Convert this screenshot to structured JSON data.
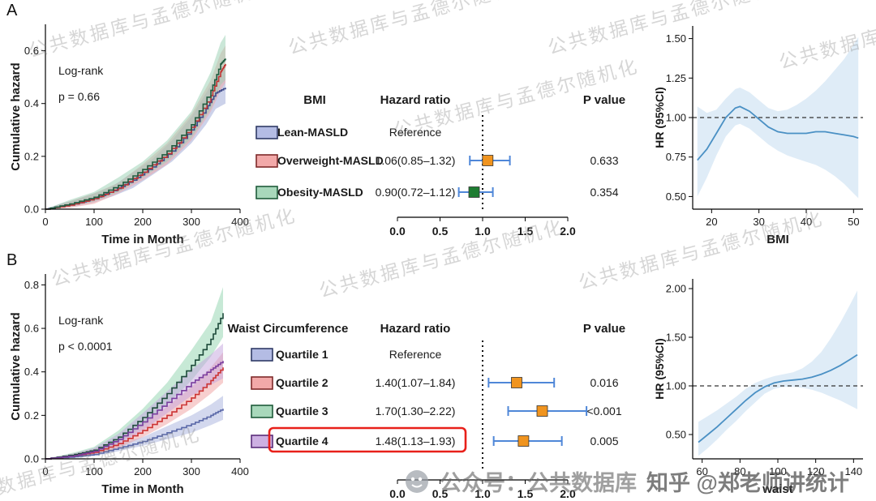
{
  "labels": {
    "panelA": "A",
    "panelB": "B"
  },
  "watermark": {
    "diagonal": "公共数据库与孟德尔随机化",
    "credit_wechat": "公众号：公共数据库",
    "credit_zhihu": "知乎 @郑老师讲统计"
  },
  "chart_data": [
    {
      "id": "kmA",
      "type": "line",
      "subtype": "km",
      "annotation": [
        "Log-rank",
        "p = 0.66"
      ],
      "xlabel": "Time in Month",
      "ylabel": "Cumulative hazard",
      "xlim": [
        0,
        400
      ],
      "ylim": [
        0,
        0.7
      ],
      "xticks": [
        0,
        100,
        200,
        300,
        400
      ],
      "yticks": [
        0.0,
        0.2,
        0.4,
        0.6
      ],
      "series": [
        {
          "name": "Lean-MASLD",
          "color": "#3f4b8c",
          "band": "#9aa5d6",
          "x": [
            0,
            30,
            60,
            100,
            140,
            180,
            220,
            260,
            300,
            330,
            350,
            370
          ],
          "y": [
            0,
            0.01,
            0.02,
            0.04,
            0.07,
            0.11,
            0.16,
            0.22,
            0.3,
            0.38,
            0.44,
            0.46
          ],
          "lo": [
            0,
            0.005,
            0.01,
            0.025,
            0.05,
            0.08,
            0.13,
            0.18,
            0.25,
            0.32,
            0.38,
            0.4
          ],
          "hi": [
            0,
            0.02,
            0.035,
            0.06,
            0.09,
            0.14,
            0.19,
            0.26,
            0.35,
            0.44,
            0.5,
            0.53
          ]
        },
        {
          "name": "Overweight-MASLD",
          "color": "#c03535",
          "band": "#f0a3a3",
          "x": [
            0,
            50,
            100,
            150,
            200,
            250,
            300,
            340,
            360,
            370
          ],
          "y": [
            0,
            0.015,
            0.04,
            0.08,
            0.14,
            0.21,
            0.31,
            0.43,
            0.52,
            0.55
          ],
          "lo": [
            0,
            0.005,
            0.02,
            0.06,
            0.11,
            0.17,
            0.26,
            0.37,
            0.45,
            0.48
          ],
          "hi": [
            0,
            0.03,
            0.06,
            0.1,
            0.17,
            0.25,
            0.36,
            0.49,
            0.59,
            0.62
          ]
        },
        {
          "name": "Obesity-MASLD",
          "color": "#215c40",
          "band": "#97d0b2",
          "x": [
            0,
            50,
            100,
            150,
            200,
            250,
            300,
            340,
            360,
            370
          ],
          "y": [
            0,
            0.02,
            0.045,
            0.09,
            0.15,
            0.22,
            0.32,
            0.45,
            0.55,
            0.57
          ],
          "lo": [
            0,
            0.01,
            0.03,
            0.065,
            0.12,
            0.18,
            0.27,
            0.38,
            0.47,
            0.49
          ],
          "hi": [
            0,
            0.035,
            0.065,
            0.12,
            0.18,
            0.26,
            0.37,
            0.52,
            0.63,
            0.66
          ]
        }
      ]
    },
    {
      "id": "forestA",
      "type": "forest",
      "col_headers": [
        "BMI",
        "Hazard ratio",
        "P value"
      ],
      "axis_ticks": [
        "0.0",
        "0.5",
        "1.0",
        "1.5",
        "2.0"
      ],
      "axis_range": [
        0,
        2
      ],
      "ref_line": 1.0,
      "whisker_color": "#4f87d8",
      "rows": [
        {
          "label": "Lean-MASLD",
          "hr_text": "Reference",
          "p": "",
          "swatch": "#b4bce4",
          "swatch_border": "#2f3a66"
        },
        {
          "label": "Overweight-MASLD",
          "hr_text": "1.06(0.85–1.32)",
          "hr": 1.06,
          "lo": 0.85,
          "hi": 1.32,
          "p": "0.633",
          "marker": "#f0941f",
          "swatch": "#f2a9a9",
          "swatch_border": "#7e2a2a"
        },
        {
          "label": "Obesity-MASLD",
          "hr_text": "0.90(0.72–1.12)",
          "hr": 0.9,
          "lo": 0.72,
          "hi": 1.12,
          "p": "0.354",
          "marker": "#1e7d32",
          "swatch": "#a8d8bb",
          "swatch_border": "#1e5c3a"
        }
      ]
    },
    {
      "id": "splineA",
      "type": "line",
      "subtype": "spline",
      "xlabel": "BMI",
      "ylabel": "HR (95%CI)",
      "xlim": [
        16,
        52
      ],
      "ylim": [
        0.42,
        1.58
      ],
      "xticks": [
        20,
        30,
        40,
        50
      ],
      "yticks": [
        "0.50",
        "0.75",
        "1.00",
        "1.25",
        "1.50"
      ],
      "ref_y": 1.0,
      "line_color": "#4a90c4",
      "band_color": "#d9e9f6",
      "x": [
        17,
        19,
        21,
        23,
        25,
        26,
        28,
        30,
        32,
        34,
        36,
        38,
        40,
        42,
        44,
        46,
        48,
        50,
        51
      ],
      "y": [
        0.73,
        0.8,
        0.9,
        1.0,
        1.06,
        1.07,
        1.04,
        0.99,
        0.94,
        0.91,
        0.9,
        0.9,
        0.9,
        0.91,
        0.91,
        0.9,
        0.89,
        0.88,
        0.87
      ],
      "lo": [
        0.5,
        0.62,
        0.76,
        0.88,
        0.95,
        0.96,
        0.93,
        0.88,
        0.83,
        0.79,
        0.76,
        0.74,
        0.72,
        0.7,
        0.67,
        0.63,
        0.58,
        0.52,
        0.49
      ],
      "hi": [
        1.07,
        1.03,
        1.05,
        1.12,
        1.18,
        1.19,
        1.16,
        1.11,
        1.06,
        1.04,
        1.05,
        1.08,
        1.12,
        1.17,
        1.23,
        1.3,
        1.37,
        1.46,
        1.51
      ]
    },
    {
      "id": "kmB",
      "type": "line",
      "subtype": "km",
      "annotation": [
        "Log-rank",
        "p < 0.0001"
      ],
      "xlabel": "Time in Month",
      "ylabel": "Cumulative hazard",
      "xlim": [
        0,
        400
      ],
      "ylim": [
        0,
        0.85
      ],
      "xticks": [
        0,
        100,
        200,
        300,
        400
      ],
      "yticks": [
        0.0,
        0.2,
        0.4,
        0.6,
        0.8
      ],
      "series": [
        {
          "name": "Quartile 1",
          "color": "#5a68a8",
          "band": "#a8b1dd",
          "x": [
            0,
            60,
            100,
            150,
            200,
            250,
            300,
            340,
            365
          ],
          "y": [
            0,
            0.01,
            0.02,
            0.05,
            0.08,
            0.12,
            0.16,
            0.2,
            0.23
          ],
          "lo": [
            0,
            0.004,
            0.012,
            0.035,
            0.06,
            0.09,
            0.12,
            0.155,
            0.18
          ],
          "hi": [
            0,
            0.02,
            0.03,
            0.07,
            0.1,
            0.15,
            0.2,
            0.25,
            0.29
          ]
        },
        {
          "name": "Quartile 2",
          "color": "#cc3333",
          "band": "#f0a0a0",
          "x": [
            0,
            60,
            100,
            150,
            200,
            250,
            300,
            340,
            365
          ],
          "y": [
            0,
            0.015,
            0.03,
            0.07,
            0.13,
            0.2,
            0.28,
            0.36,
            0.42
          ],
          "lo": [
            0,
            0.008,
            0.02,
            0.05,
            0.1,
            0.16,
            0.23,
            0.3,
            0.35
          ],
          "hi": [
            0,
            0.025,
            0.045,
            0.09,
            0.16,
            0.24,
            0.33,
            0.42,
            0.49
          ]
        },
        {
          "name": "Quartile 3",
          "color": "#1d4a3a",
          "band": "#8fd4ae",
          "x": [
            0,
            60,
            100,
            150,
            200,
            250,
            300,
            340,
            365
          ],
          "y": [
            0,
            0.02,
            0.04,
            0.1,
            0.19,
            0.3,
            0.43,
            0.55,
            0.67
          ],
          "lo": [
            0,
            0.012,
            0.028,
            0.075,
            0.15,
            0.25,
            0.36,
            0.47,
            0.56
          ],
          "hi": [
            0,
            0.03,
            0.055,
            0.13,
            0.23,
            0.35,
            0.5,
            0.63,
            0.79
          ]
        },
        {
          "name": "Quartile 4",
          "color": "#7a3d9e",
          "band": "#c4a3dd",
          "x": [
            0,
            60,
            100,
            150,
            200,
            250,
            300,
            340,
            365
          ],
          "y": [
            0,
            0.015,
            0.035,
            0.09,
            0.17,
            0.26,
            0.35,
            0.41,
            0.45
          ],
          "lo": [
            0,
            0.008,
            0.022,
            0.065,
            0.13,
            0.21,
            0.29,
            0.34,
            0.37
          ],
          "hi": [
            0,
            0.025,
            0.05,
            0.115,
            0.21,
            0.31,
            0.41,
            0.48,
            0.53
          ]
        }
      ]
    },
    {
      "id": "forestB",
      "type": "forest",
      "col_headers": [
        "Waist Circumference",
        "Hazard ratio",
        "P value"
      ],
      "axis_ticks": [
        "0.0",
        "0.5",
        "1.0",
        "1.5",
        "2.0"
      ],
      "axis_range": [
        0,
        2
      ],
      "ref_line": 1.0,
      "whisker_color": "#4f87d8",
      "rows": [
        {
          "label": "Quartile 1",
          "hr_text": "Reference",
          "p": "",
          "swatch": "#b4bce4",
          "swatch_border": "#2f3a66"
        },
        {
          "label": "Quartile 2",
          "hr_text": "1.40(1.07–1.84)",
          "hr": 1.4,
          "lo": 1.07,
          "hi": 1.84,
          "p": "0.016",
          "marker": "#f0941f",
          "swatch": "#f2a9a9",
          "swatch_border": "#7e2a2a"
        },
        {
          "label": "Quartile 3",
          "hr_text": "1.70(1.30–2.22)",
          "hr": 1.7,
          "lo": 1.3,
          "hi": 2.22,
          "p": "<0.001",
          "marker": "#f0941f",
          "swatch": "#a8d8bb",
          "swatch_border": "#1e5c3a"
        },
        {
          "label": "Quartile 4",
          "hr_text": "1.48(1.13–1.93)",
          "hr": 1.48,
          "lo": 1.13,
          "hi": 1.93,
          "p": "0.005",
          "marker": "#f0941f",
          "swatch": "#cdb0e2",
          "swatch_border": "#5a2d7a",
          "highlight": true
        }
      ]
    },
    {
      "id": "splineB",
      "type": "line",
      "subtype": "spline",
      "xlabel": "waist",
      "ylabel": "HR (95%CI)",
      "xlim": [
        55,
        145
      ],
      "ylim": [
        0.25,
        2.1
      ],
      "xticks": [
        60,
        80,
        100,
        120,
        140
      ],
      "yticks": [
        "0.50",
        "1.00",
        "1.50",
        "2.00"
      ],
      "ref_y": 1.0,
      "line_color": "#4a90c4",
      "band_color": "#d9e9f6",
      "x": [
        58,
        63,
        68,
        73,
        78,
        83,
        88,
        93,
        98,
        103,
        108,
        113,
        118,
        123,
        128,
        133,
        138,
        142
      ],
      "y": [
        0.42,
        0.5,
        0.58,
        0.67,
        0.76,
        0.85,
        0.93,
        0.99,
        1.03,
        1.05,
        1.06,
        1.07,
        1.09,
        1.12,
        1.16,
        1.21,
        1.27,
        1.32
      ],
      "lo": [
        0.28,
        0.36,
        0.45,
        0.55,
        0.64,
        0.74,
        0.83,
        0.92,
        0.97,
        0.99,
        0.99,
        0.98,
        0.96,
        0.93,
        0.89,
        0.85,
        0.8,
        0.76
      ],
      "hi": [
        0.63,
        0.69,
        0.75,
        0.82,
        0.89,
        0.97,
        1.03,
        1.07,
        1.1,
        1.12,
        1.14,
        1.18,
        1.25,
        1.35,
        1.49,
        1.65,
        1.83,
        1.98
      ]
    }
  ]
}
